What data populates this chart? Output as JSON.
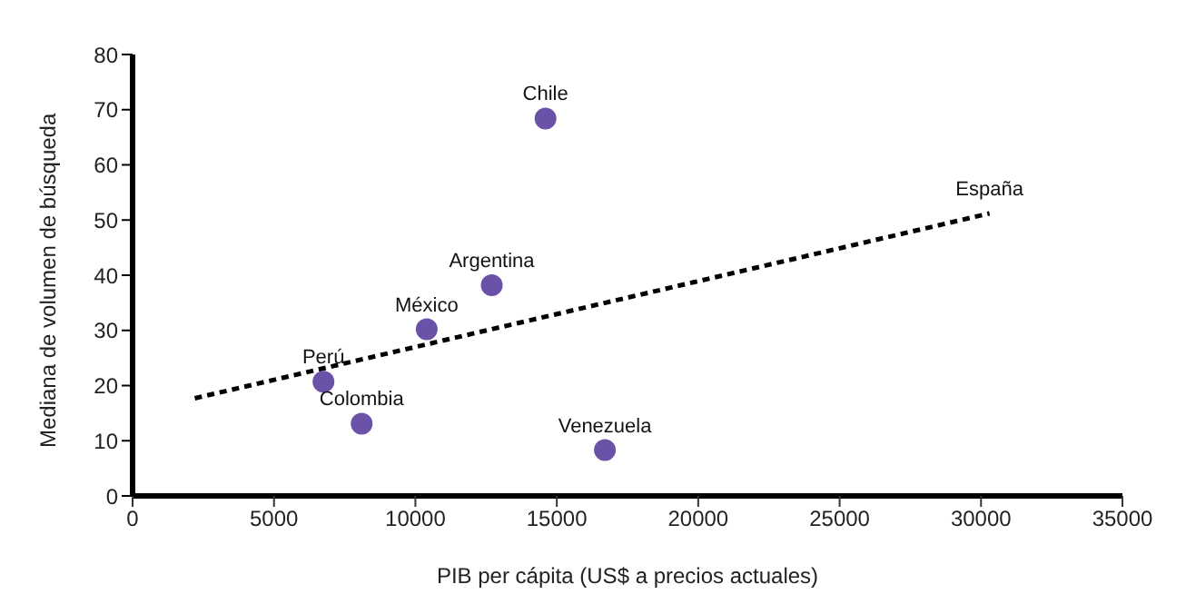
{
  "chart_data": {
    "type": "scatter",
    "xlabel": "PIB per cápita (US$ a precios actuales)",
    "ylabel": "Mediana de volumen de búsqueda",
    "series": [
      {
        "color": "#6a52a8",
        "x": [
          6750,
          8100,
          10400,
          12700,
          14600,
          16700
        ],
        "values": [
          20.7,
          13.1,
          30.2,
          38.2,
          68.4,
          8.3
        ]
      },
      {
        "type": "line",
        "color": "#000000",
        "line_style": "dashed",
        "marker": "none",
        "x": [
          2200,
          30300
        ],
        "values": [
          17.7,
          51.2
        ]
      }
    ],
    "annotations": [
      {
        "text": "Perú",
        "x": 6750,
        "y": 20.7
      },
      {
        "text": "Colombia",
        "x": 8100,
        "y": 13.1
      },
      {
        "text": "México",
        "x": 10400,
        "y": 30.2
      },
      {
        "text": "Argentina",
        "x": 12700,
        "y": 38.2
      },
      {
        "text": "Chile",
        "x": 14600,
        "y": 68.4
      },
      {
        "text": "Venezuela",
        "x": 16700,
        "y": 8.3
      },
      {
        "text": "España",
        "x": 30300,
        "y": 51.2
      }
    ],
    "xlim": [
      0,
      35000
    ],
    "xticks": [
      0,
      5000,
      10000,
      15000,
      20000,
      25000,
      30000,
      35000
    ],
    "ylim": [
      0,
      80
    ],
    "yticks": [
      0,
      10,
      20,
      30,
      40,
      50,
      60,
      70,
      80
    ],
    "marker": "circle",
    "grid": false,
    "legend": false
  }
}
